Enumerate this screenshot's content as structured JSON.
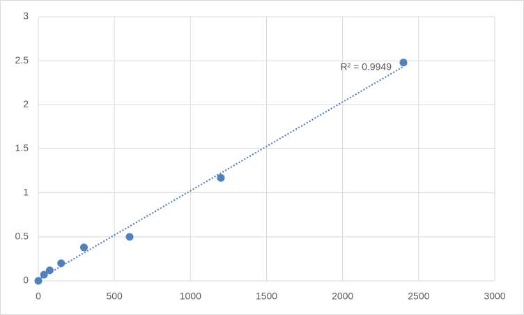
{
  "chart_data": {
    "type": "scatter",
    "annotation": "R² = 0.9949",
    "x": [
      0,
      37.5,
      75,
      150,
      300,
      600,
      1200,
      2400
    ],
    "series": [
      {
        "color": "#4f81bd",
        "values": [
          0,
          0.07,
          0.12,
          0.2,
          0.38,
          0.5,
          1.17,
          2.48
        ]
      }
    ],
    "trendline": "linear",
    "xlim": [
      0,
      3000
    ],
    "xticks": [
      0,
      500,
      1000,
      1500,
      2000,
      2500,
      3000
    ],
    "ylim": [
      0,
      3
    ],
    "yticks": [
      0,
      0.5,
      1,
      1.5,
      2,
      2.5,
      3
    ],
    "grid": true
  }
}
